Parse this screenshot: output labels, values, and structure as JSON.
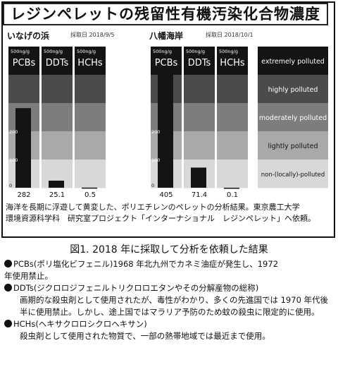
{
  "chart_data": {
    "type": "bar",
    "title": "レジンペレットの残留性有機汚染化合物濃度",
    "panels": [
      {
        "location": "いなげの浜",
        "date": "採取日 2018/9/5",
        "categories": [
          "PCBs",
          "DDTs",
          "HCHs"
        ],
        "values": [
          282,
          25.1,
          0.5
        ],
        "value_labels": [
          "282",
          "25.1",
          "0.5"
        ]
      },
      {
        "location": "八幡海岸",
        "date": "採取日 2018/10/1",
        "categories": [
          "PCBs",
          "DDTs",
          "HCHs"
        ],
        "values": [
          405,
          71.4,
          0.1
        ],
        "value_labels": [
          "405",
          "71.4",
          "0.1"
        ]
      }
    ],
    "unit": "500ng/g",
    "ylim": [
      0,
      500
    ],
    "y_ticks": [
      0,
      100,
      200
    ],
    "legend": {
      "placement": "right",
      "items": [
        {
          "label": "extremely polluted",
          "color": "#141414"
        },
        {
          "label": "highly polluted",
          "color": "#4b4b4b"
        },
        {
          "label": "moderately polluted",
          "color": "#7d7d7d"
        },
        {
          "label": "lightly polluted",
          "color": "#a9a9a9"
        },
        {
          "label": "non-(locally)-polluted",
          "color": "#d8d8d8"
        }
      ]
    },
    "bar_color": "#141414"
  },
  "caption_lines": [
    "海洋を長期に浮遊して黄変した、ポリエチレンのペレットの分析結果。東京農工大学",
    "環境資源科学科　研究室プロジェクト「インターナショナル　レジンペレット」へ依頼。"
  ],
  "figure_label": "図1. 2018 年に採取して分析を依頼した結果",
  "notes": [
    {
      "head": "PCBs(ポリ塩化ビフェニル)1968 年北九州でカネミ油症が発生し、1972",
      "body": "年使用禁止。",
      "body_indent": false
    },
    {
      "head": "DDTs(ジクロロジフェニルトリクロロエタンやその分解産物の総称)",
      "body": "画期的な殺虫剤として使用されたが、毒性がわかり、多くの先進国では 1970 年代後半に使用禁止。しかし、途上国ではマラリア予防のため蚊の殺虫に限定的に使用。",
      "body_indent": true
    },
    {
      "head": "HCHs(ヘキサクロロシクロヘキサン)",
      "body": "殺虫剤として使用された物質で、一部の熱帯地域では最近まで使用。",
      "body_indent": false
    }
  ]
}
